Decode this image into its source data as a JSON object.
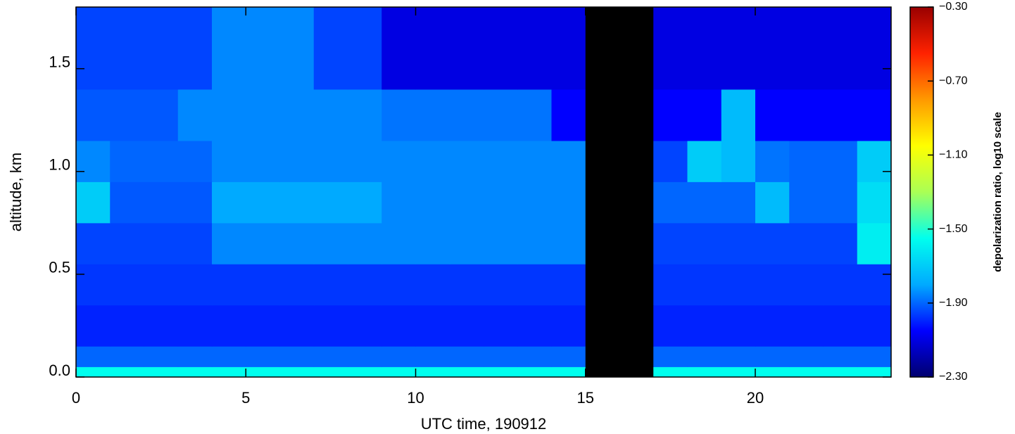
{
  "chart_data": {
    "type": "heatmap",
    "xlabel": "UTC time, 190912",
    "ylabel": "altitude, km",
    "colorbar_label": "depolarization ratio, log10 scale",
    "x": [
      0,
      1,
      2,
      3,
      4,
      5,
      6,
      7,
      8,
      9,
      10,
      11,
      12,
      13,
      14,
      15,
      16,
      17,
      18,
      19,
      20,
      21,
      22,
      23,
      24
    ],
    "y": [
      0,
      0.05,
      0.15,
      0.35,
      0.55,
      0.75,
      0.95,
      1.15,
      1.4,
      1.8
    ],
    "z": [
      [
        -1.55,
        -1.55,
        -1.55,
        -1.55,
        -1.55,
        -1.55,
        -1.55,
        -1.55,
        -1.55,
        -1.55,
        -1.55,
        -1.55,
        -1.55,
        -1.55,
        -1.55,
        null,
        null,
        -1.55,
        -1.55,
        -1.55,
        -1.55,
        -1.55,
        -1.55,
        -1.55
      ],
      [
        -1.9,
        -1.9,
        -1.9,
        -1.9,
        -1.9,
        -1.9,
        -1.9,
        -1.9,
        -1.9,
        -1.9,
        -1.9,
        -1.9,
        -1.9,
        -1.9,
        -1.9,
        null,
        null,
        -1.9,
        -1.9,
        -1.9,
        -1.9,
        -1.9,
        -1.9,
        -1.9
      ],
      [
        -2.0,
        -2.0,
        -2.0,
        -2.0,
        -2.0,
        -2.0,
        -2.0,
        -2.0,
        -2.0,
        -2.0,
        -2.0,
        -2.0,
        -2.0,
        -2.0,
        -2.0,
        null,
        null,
        -2.0,
        -2.0,
        -2.0,
        -2.0,
        -2.0,
        -2.0,
        -2.0
      ],
      [
        -1.97,
        -1.97,
        -1.97,
        -1.97,
        -1.97,
        -1.97,
        -1.97,
        -1.97,
        -1.97,
        -1.97,
        -1.97,
        -1.97,
        -1.97,
        -1.97,
        -1.97,
        null,
        null,
        -1.97,
        -1.97,
        -1.97,
        -1.97,
        -1.97,
        -1.97,
        -1.97
      ],
      [
        -1.95,
        -1.95,
        -1.95,
        -1.95,
        -1.85,
        -1.85,
        -1.85,
        -1.85,
        -1.85,
        -1.85,
        -1.85,
        -1.85,
        -1.85,
        -1.85,
        -1.85,
        null,
        null,
        -1.95,
        -1.95,
        -1.95,
        -1.95,
        -1.95,
        -1.95,
        -1.6
      ],
      [
        -1.7,
        -1.92,
        -1.92,
        -1.92,
        -1.8,
        -1.8,
        -1.8,
        -1.8,
        -1.8,
        -1.85,
        -1.85,
        -1.85,
        -1.85,
        -1.85,
        -1.85,
        null,
        null,
        -1.9,
        -1.9,
        -1.9,
        -1.75,
        -1.9,
        -1.9,
        -1.65
      ],
      [
        -1.85,
        -1.9,
        -1.9,
        -1.9,
        -1.85,
        -1.85,
        -1.85,
        -1.85,
        -1.85,
        -1.85,
        -1.85,
        -1.85,
        -1.85,
        -1.85,
        -1.85,
        null,
        null,
        -1.95,
        -1.7,
        -1.75,
        -1.88,
        -1.9,
        -1.9,
        -1.7
      ],
      [
        -1.92,
        -1.92,
        -1.92,
        -1.85,
        -1.85,
        -1.85,
        -1.85,
        -1.85,
        -1.85,
        -1.88,
        -1.88,
        -1.88,
        -1.88,
        -1.88,
        -2.05,
        null,
        null,
        -2.05,
        -2.05,
        -1.75,
        -2.05,
        -2.05,
        -2.05,
        -2.05
      ],
      [
        -1.95,
        -1.95,
        -1.95,
        -1.95,
        -1.85,
        -1.85,
        -1.85,
        -1.95,
        -1.95,
        -2.1,
        -2.1,
        -2.1,
        -2.1,
        -2.1,
        -2.1,
        null,
        null,
        -2.1,
        -2.1,
        -2.1,
        -2.1,
        -2.1,
        -2.1,
        -2.1
      ]
    ],
    "null_color": "#000000",
    "colorscale": [
      "#00006e",
      "#0000ff",
      "#00aaff",
      "#00ffee",
      "#aaff55",
      "#ffff00",
      "#ff9900",
      "#ff2200",
      "#990000"
    ],
    "xlim": [
      0,
      24
    ],
    "xticks": [
      0,
      5,
      10,
      15,
      20
    ],
    "ylim": [
      0,
      1.8
    ],
    "yticks": [
      {
        "value": 0,
        "label": "0.0"
      },
      0.5,
      {
        "value": 1,
        "label": "1.0"
      },
      1.5
    ],
    "clim": [
      -2.3,
      -0.3
    ],
    "cticks": [
      {
        "value": -0.3,
        "label": "−0.30"
      },
      {
        "value": -0.7,
        "label": "−0.70"
      },
      {
        "value": -1.1,
        "label": "−1.10"
      },
      {
        "value": -1.5,
        "label": "−1.50"
      },
      {
        "value": -1.9,
        "label": "−1.90"
      },
      {
        "value": -2.3,
        "label": "−2.30"
      }
    ]
  }
}
